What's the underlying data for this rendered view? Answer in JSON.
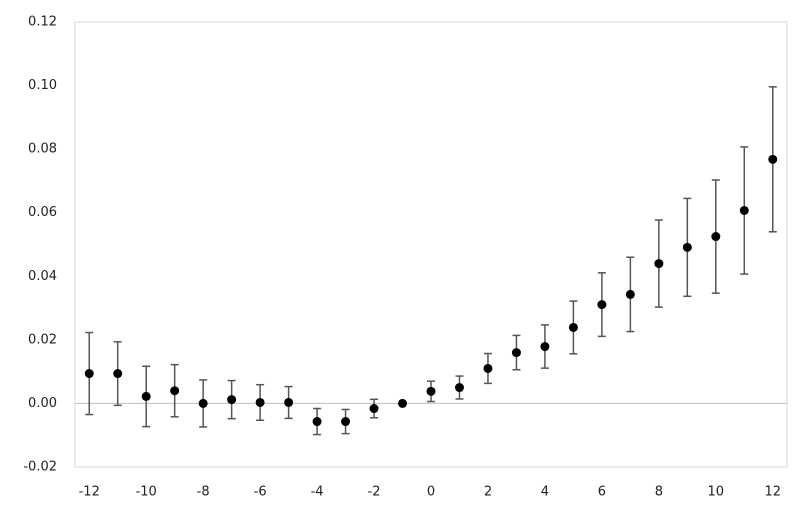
{
  "chart_data": {
    "type": "scatter",
    "x": [
      -12,
      -11,
      -10,
      -9,
      -8,
      -7,
      -6,
      -5,
      -4,
      -3,
      -2,
      -1,
      0,
      1,
      2,
      3,
      4,
      5,
      6,
      7,
      8,
      9,
      10,
      11,
      12
    ],
    "series": [
      {
        "color": "#000000",
        "values": [
          0.0094,
          0.0094,
          0.0022,
          0.004,
          0.0,
          0.0012,
          0.0003,
          0.0003,
          -0.0057,
          -0.0057,
          -0.0016,
          0.0,
          0.0038,
          0.005,
          0.011,
          0.016,
          0.0179,
          0.0239,
          0.0311,
          0.0343,
          0.044,
          0.0491,
          0.0525,
          0.0607,
          0.0768
        ],
        "errors": [
          0.0129,
          0.01,
          0.0095,
          0.0082,
          0.0074,
          0.006,
          0.0056,
          0.005,
          0.0041,
          0.0038,
          0.0029,
          0,
          0.0032,
          0.0036,
          0.0047,
          0.0054,
          0.0068,
          0.0083,
          0.01,
          0.0117,
          0.0137,
          0.0154,
          0.0178,
          0.02,
          0.0228
        ]
      }
    ],
    "xlim": [
      -12.5,
      12.5
    ],
    "xticks": [
      -12,
      -10,
      -8,
      -6,
      -4,
      -2,
      0,
      2,
      4,
      6,
      8,
      10,
      12
    ],
    "ylim": [
      -0.02,
      0.12
    ],
    "yticks": [
      -0.02,
      {
        "value": 0,
        "label": "0.00"
      },
      0.02,
      0.04,
      0.06,
      0.08,
      {
        "value": 0.1,
        "label": "0.10"
      },
      0.12
    ],
    "error_color": "#555555"
  }
}
